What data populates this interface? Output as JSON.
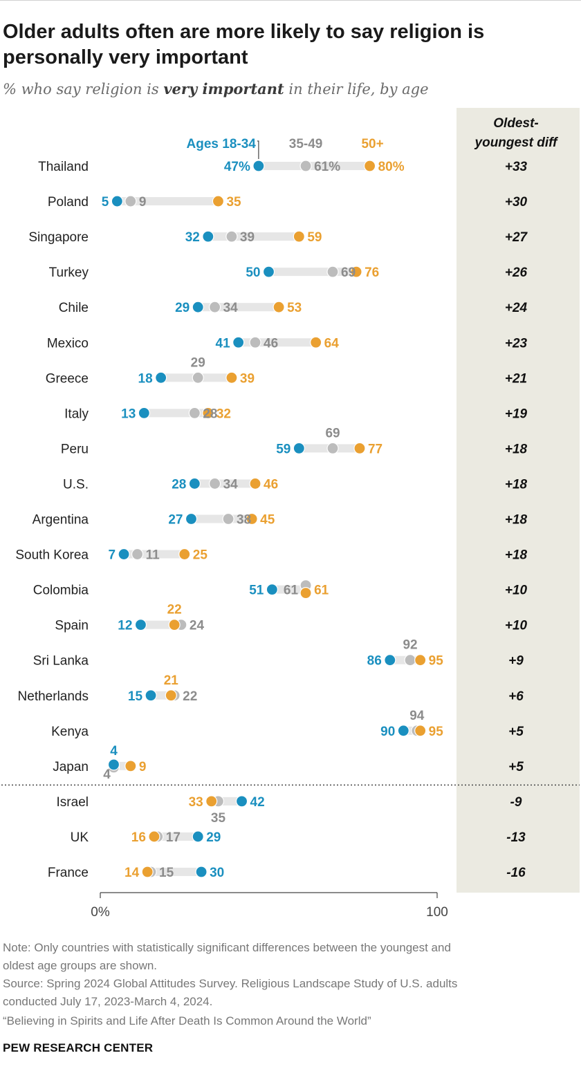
{
  "title": "Older adults often are more likely to say religion is personally very important",
  "subtitle": {
    "prefix": "% who say religion is ",
    "emphasis": "very important",
    "suffix": " in their life, by age"
  },
  "note": {
    "line1": "Note: Only countries with statistically significant differences between the youngest and",
    "line2": "oldest age groups are shown."
  },
  "source": {
    "line1": "Source: Spring 2024 Global Attitudes Survey. Religious Landscape Study of U.S. adults",
    "line2": "conducted July 17, 2023-March 4, 2024."
  },
  "reference": "“Believing in Spirits and Life After Death Is Common Around the World”",
  "brand": "PEW RESEARCH CENTER",
  "colors": {
    "young": "#1a8fbf",
    "mid": "#bcbcbc",
    "old": "#eaa031",
    "mid_text": "#8c8c8c",
    "bar": "#e6e6e6",
    "diff_panel": "#ebeae1"
  },
  "chart_data": {
    "type": "dot",
    "xlim": [
      0,
      100
    ],
    "x_ticks": [
      0,
      100
    ],
    "x_tick_labels": [
      "0%",
      "100"
    ],
    "diff_header": "Oldest-youngest diff",
    "series": [
      {
        "key": "young",
        "name": "Ages 18-34"
      },
      {
        "key": "mid",
        "name": "35-49"
      },
      {
        "key": "old",
        "name": "50+"
      }
    ],
    "rows": [
      {
        "country": "Thailand",
        "young": 47,
        "mid": 61,
        "old": 80,
        "diff": "+33",
        "labels": {
          "young": "47%",
          "mid": "61%",
          "old": "80%"
        }
      },
      {
        "country": "Poland",
        "young": 5,
        "mid": 9,
        "old": 35,
        "diff": "+30",
        "labels": {
          "young": "5",
          "mid": "9",
          "old": "35"
        }
      },
      {
        "country": "Singapore",
        "young": 32,
        "mid": 39,
        "old": 59,
        "diff": "+27",
        "labels": {
          "young": "32",
          "mid": "39",
          "old": "59"
        }
      },
      {
        "country": "Turkey",
        "young": 50,
        "mid": 69,
        "old": 76,
        "diff": "+26",
        "labels": {
          "young": "50",
          "mid": "69",
          "old": "76"
        }
      },
      {
        "country": "Chile",
        "young": 29,
        "mid": 34,
        "old": 53,
        "diff": "+24",
        "labels": {
          "young": "29",
          "mid": "34",
          "old": "53"
        }
      },
      {
        "country": "Mexico",
        "young": 41,
        "mid": 46,
        "old": 64,
        "diff": "+23",
        "labels": {
          "young": "41",
          "mid": "46",
          "old": "64"
        }
      },
      {
        "country": "Greece",
        "young": 18,
        "mid": 29,
        "old": 39,
        "diff": "+21",
        "labels": {
          "young": "18",
          "mid": "29",
          "old": "39"
        }
      },
      {
        "country": "Italy",
        "young": 13,
        "mid": 28,
        "old": 32,
        "diff": "+19",
        "labels": {
          "young": "13",
          "mid": "28",
          "old": "32"
        }
      },
      {
        "country": "Peru",
        "young": 59,
        "mid": 69,
        "old": 77,
        "diff": "+18",
        "labels": {
          "young": "59",
          "mid": "69",
          "old": "77"
        }
      },
      {
        "country": "U.S.",
        "young": 28,
        "mid": 34,
        "old": 46,
        "diff": "+18",
        "labels": {
          "young": "28",
          "mid": "34",
          "old": "46"
        }
      },
      {
        "country": "Argentina",
        "young": 27,
        "mid": 38,
        "old": 45,
        "diff": "+18",
        "labels": {
          "young": "27",
          "mid": "38",
          "old": "45"
        }
      },
      {
        "country": "South Korea",
        "young": 7,
        "mid": 11,
        "old": 25,
        "diff": "+18",
        "labels": {
          "young": "7",
          "mid": "11",
          "old": "25"
        }
      },
      {
        "country": "Colombia",
        "young": 51,
        "mid": 61,
        "old": 61,
        "diff": "+10",
        "labels": {
          "young": "51",
          "mid": "61",
          "old": "61"
        }
      },
      {
        "country": "Spain",
        "young": 12,
        "mid": 24,
        "old": 22,
        "diff": "+10",
        "labels": {
          "young": "12",
          "mid": "24",
          "old": "22"
        }
      },
      {
        "country": "Sri Lanka",
        "young": 86,
        "mid": 92,
        "old": 95,
        "diff": "+9",
        "labels": {
          "young": "86",
          "mid": "92",
          "old": "95"
        }
      },
      {
        "country": "Netherlands",
        "young": 15,
        "mid": 22,
        "old": 21,
        "diff": "+6",
        "labels": {
          "young": "15",
          "mid": "22",
          "old": "21"
        }
      },
      {
        "country": "Kenya",
        "young": 90,
        "mid": 94,
        "old": 95,
        "diff": "+5",
        "labels": {
          "young": "90",
          "mid": "94",
          "old": "95"
        }
      },
      {
        "country": "Japan",
        "young": 4,
        "mid": 4,
        "old": 9,
        "diff": "+5",
        "labels": {
          "young": "4",
          "mid": "4",
          "old": "9"
        }
      },
      {
        "country": "Israel",
        "young": 42,
        "mid": 35,
        "old": 33,
        "diff": "-9",
        "labels": {
          "young": "42",
          "mid": "35",
          "old": "33"
        }
      },
      {
        "country": "UK",
        "young": 29,
        "mid": 17,
        "old": 16,
        "diff": "-13",
        "labels": {
          "young": "29",
          "mid": "17",
          "old": "16"
        }
      },
      {
        "country": "France",
        "young": 30,
        "mid": 15,
        "old": 14,
        "diff": "-16",
        "labels": {
          "young": "30",
          "mid": "15",
          "old": "14"
        }
      }
    ]
  }
}
